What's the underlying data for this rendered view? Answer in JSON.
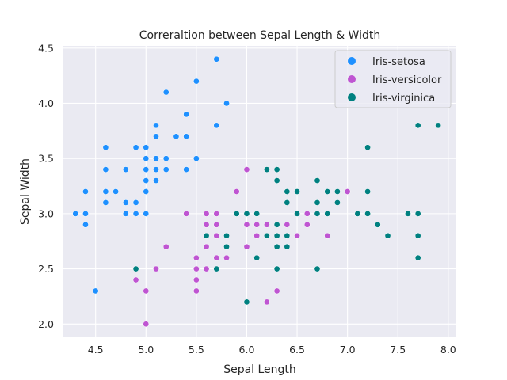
{
  "chart_data": {
    "type": "scatter",
    "title": "Correraltion between Sepal Length & Width",
    "xlabel": "Sepal Length",
    "ylabel": "Sepal Width",
    "xlim": [
      4.18,
      8.08
    ],
    "ylim": [
      1.88,
      4.52
    ],
    "xticks": [
      "4.5",
      "5.0",
      "5.5",
      "6.0",
      "6.5",
      "7.0",
      "7.5",
      "8.0"
    ],
    "yticks": [
      "2.0",
      "2.5",
      "3.0",
      "3.5",
      "4.0",
      "4.5"
    ],
    "grid": true,
    "legend_position": "top-right",
    "series": [
      {
        "name": "Iris-setosa",
        "color": "#1e90ff",
        "points": [
          [
            4.3,
            3.0
          ],
          [
            4.4,
            2.9
          ],
          [
            4.4,
            3.0
          ],
          [
            4.4,
            3.2
          ],
          [
            4.5,
            2.3
          ],
          [
            4.6,
            3.1
          ],
          [
            4.6,
            3.2
          ],
          [
            4.6,
            3.4
          ],
          [
            4.6,
            3.6
          ],
          [
            4.7,
            3.2
          ],
          [
            4.8,
            3.0
          ],
          [
            4.8,
            3.1
          ],
          [
            4.8,
            3.4
          ],
          [
            4.9,
            3.0
          ],
          [
            4.9,
            3.1
          ],
          [
            4.9,
            3.6
          ],
          [
            5.0,
            3.0
          ],
          [
            5.0,
            3.2
          ],
          [
            5.0,
            3.3
          ],
          [
            5.0,
            3.4
          ],
          [
            5.0,
            3.5
          ],
          [
            5.0,
            3.6
          ],
          [
            5.1,
            3.3
          ],
          [
            5.1,
            3.4
          ],
          [
            5.1,
            3.5
          ],
          [
            5.1,
            3.7
          ],
          [
            5.1,
            3.8
          ],
          [
            5.2,
            3.4
          ],
          [
            5.2,
            3.5
          ],
          [
            5.2,
            4.1
          ],
          [
            5.3,
            3.7
          ],
          [
            5.4,
            3.4
          ],
          [
            5.4,
            3.7
          ],
          [
            5.4,
            3.9
          ],
          [
            5.5,
            3.5
          ],
          [
            5.5,
            4.2
          ],
          [
            5.7,
            3.8
          ],
          [
            5.7,
            4.4
          ],
          [
            5.8,
            4.0
          ]
        ]
      },
      {
        "name": "Iris-versicolor",
        "color": "#bf55d2",
        "points": [
          [
            4.9,
            2.4
          ],
          [
            5.0,
            2.0
          ],
          [
            5.0,
            2.3
          ],
          [
            5.1,
            2.5
          ],
          [
            5.2,
            2.7
          ],
          [
            5.4,
            3.0
          ],
          [
            5.5,
            2.3
          ],
          [
            5.5,
            2.4
          ],
          [
            5.5,
            2.5
          ],
          [
            5.5,
            2.6
          ],
          [
            5.6,
            2.5
          ],
          [
            5.6,
            2.7
          ],
          [
            5.6,
            2.9
          ],
          [
            5.6,
            3.0
          ],
          [
            5.7,
            2.6
          ],
          [
            5.7,
            2.8
          ],
          [
            5.7,
            2.9
          ],
          [
            5.7,
            3.0
          ],
          [
            5.8,
            2.6
          ],
          [
            5.8,
            2.7
          ],
          [
            5.9,
            3.0
          ],
          [
            5.9,
            3.2
          ],
          [
            6.0,
            2.2
          ],
          [
            6.0,
            2.7
          ],
          [
            6.0,
            2.9
          ],
          [
            6.0,
            3.4
          ],
          [
            6.1,
            2.8
          ],
          [
            6.1,
            2.9
          ],
          [
            6.1,
            3.0
          ],
          [
            6.2,
            2.2
          ],
          [
            6.2,
            2.9
          ],
          [
            6.3,
            2.3
          ],
          [
            6.3,
            2.5
          ],
          [
            6.3,
            3.3
          ],
          [
            6.4,
            2.9
          ],
          [
            6.4,
            3.2
          ],
          [
            6.5,
            2.8
          ],
          [
            6.6,
            2.9
          ],
          [
            6.6,
            3.0
          ],
          [
            6.7,
            3.0
          ],
          [
            6.7,
            3.1
          ],
          [
            6.8,
            2.8
          ],
          [
            6.9,
            3.1
          ],
          [
            7.0,
            3.2
          ]
        ]
      },
      {
        "name": "Iris-virginica",
        "color": "#008080",
        "points": [
          [
            4.9,
            2.5
          ],
          [
            5.6,
            2.8
          ],
          [
            5.7,
            2.5
          ],
          [
            5.8,
            2.7
          ],
          [
            5.8,
            2.8
          ],
          [
            5.9,
            3.0
          ],
          [
            6.0,
            2.2
          ],
          [
            6.0,
            3.0
          ],
          [
            6.1,
            2.6
          ],
          [
            6.1,
            3.0
          ],
          [
            6.2,
            2.8
          ],
          [
            6.2,
            3.4
          ],
          [
            6.3,
            2.5
          ],
          [
            6.3,
            2.7
          ],
          [
            6.3,
            2.8
          ],
          [
            6.3,
            2.9
          ],
          [
            6.3,
            3.3
          ],
          [
            6.3,
            3.4
          ],
          [
            6.4,
            2.7
          ],
          [
            6.4,
            2.8
          ],
          [
            6.4,
            3.1
          ],
          [
            6.4,
            3.2
          ],
          [
            6.5,
            3.0
          ],
          [
            6.5,
            3.2
          ],
          [
            6.7,
            2.5
          ],
          [
            6.7,
            3.0
          ],
          [
            6.7,
            3.1
          ],
          [
            6.7,
            3.3
          ],
          [
            6.8,
            3.0
          ],
          [
            6.8,
            3.2
          ],
          [
            6.9,
            3.1
          ],
          [
            6.9,
            3.2
          ],
          [
            7.1,
            3.0
          ],
          [
            7.2,
            3.0
          ],
          [
            7.2,
            3.2
          ],
          [
            7.2,
            3.6
          ],
          [
            7.3,
            2.9
          ],
          [
            7.4,
            2.8
          ],
          [
            7.6,
            3.0
          ],
          [
            7.7,
            2.6
          ],
          [
            7.7,
            2.8
          ],
          [
            7.7,
            3.0
          ],
          [
            7.7,
            3.8
          ],
          [
            7.9,
            3.8
          ]
        ]
      }
    ]
  }
}
